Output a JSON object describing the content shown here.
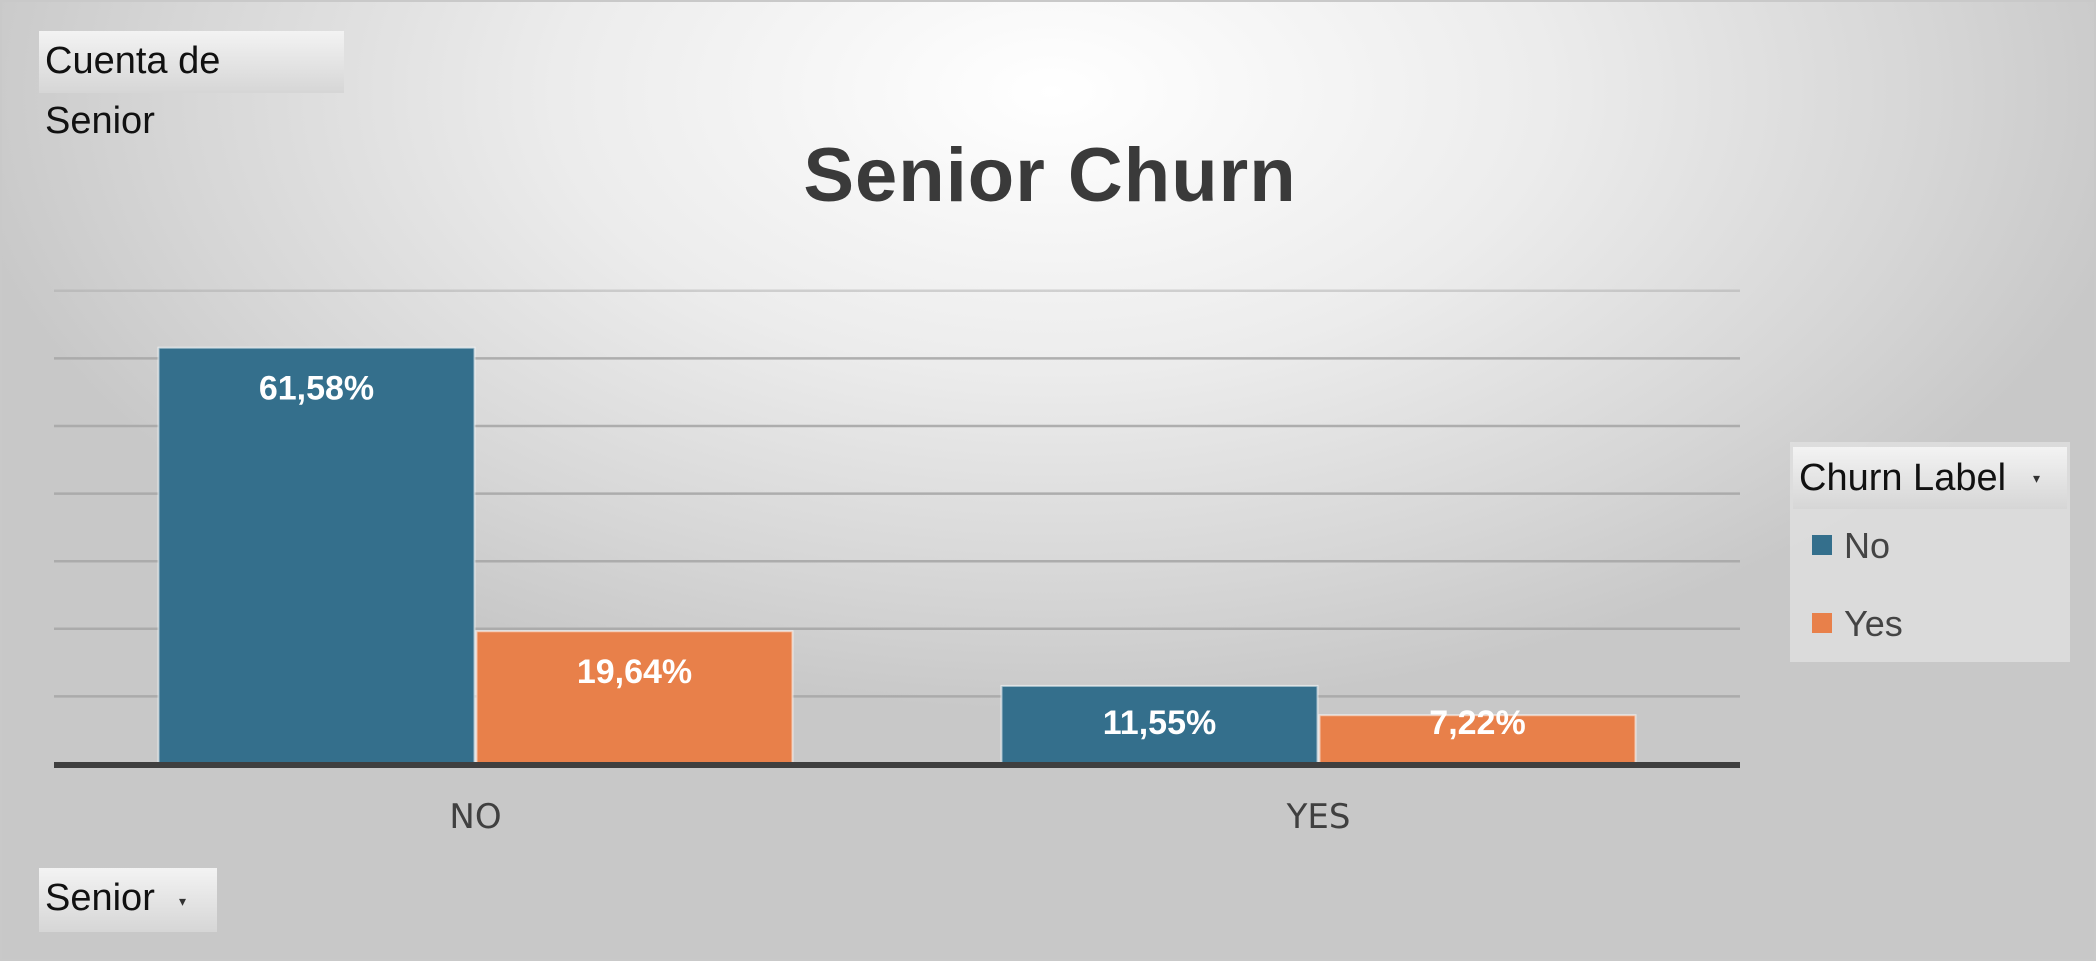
{
  "pivot": {
    "value_field_label": "Cuenta de Senior",
    "axis_field_label": "Senior",
    "legend_title": "Churn Label"
  },
  "colors": {
    "No": "#346f8c",
    "Yes": "#e8804a",
    "grid": "#a8a8a8",
    "axis": "#3f3f3f"
  },
  "icons": {
    "dropdown": "chevron-down-icon"
  },
  "chart_data": {
    "type": "bar",
    "title": "Senior Churn",
    "xlabel": "",
    "ylabel": "",
    "categories": [
      "NO",
      "YES"
    ],
    "series": [
      {
        "name": "No",
        "values": [
          61.58,
          11.55
        ],
        "labels": [
          "61,58%",
          "11,55%"
        ]
      },
      {
        "name": "Yes",
        "values": [
          19.64,
          7.22
        ],
        "labels": [
          "19,64%",
          "7,22%"
        ]
      }
    ],
    "ylim": [
      0,
      70
    ],
    "grid": true,
    "legend": "right"
  }
}
